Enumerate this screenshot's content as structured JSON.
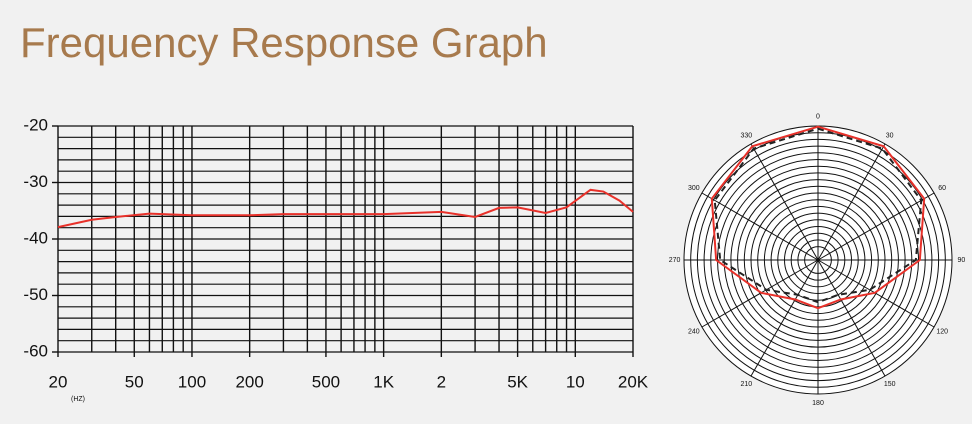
{
  "chart_data": [
    {
      "type": "line",
      "title": "Frequency Response Graph",
      "x_unit": "(HZ)",
      "log_x": true,
      "xlim": [
        20,
        20000
      ],
      "xticks": [
        20,
        50,
        100,
        200,
        500,
        {
          "value": 1000,
          "label": "1K"
        },
        {
          "value": 2000,
          "label": "2"
        },
        {
          "value": 5000,
          "label": "5K"
        },
        {
          "value": 10000,
          "label": "10"
        },
        {
          "value": 20000,
          "label": "20K"
        }
      ],
      "x_grid": [
        20,
        30,
        40,
        50,
        60,
        70,
        80,
        90,
        100,
        200,
        300,
        400,
        500,
        600,
        700,
        800,
        900,
        1000,
        2000,
        3000,
        4000,
        5000,
        6000,
        7000,
        8000,
        9000,
        10000,
        20000
      ],
      "ylim": [
        -60,
        -20
      ],
      "yticks": [
        -20,
        -30,
        -40,
        -50,
        -60
      ],
      "y_grid": [
        -20,
        -22,
        -24,
        -26,
        -28,
        -30,
        -32,
        -34,
        -36,
        -38,
        -40,
        -42,
        -44,
        -46,
        -48,
        -50,
        -52,
        -54,
        -56,
        -58,
        -60
      ],
      "grid": true,
      "series": [
        {
          "color": "#e8312a",
          "x": [
            20,
            30,
            40,
            60,
            100,
            200,
            300,
            1000,
            2000,
            3000,
            4000,
            5000,
            7000,
            9000,
            12000,
            14000,
            17000,
            20000
          ],
          "values": [
            -37.9,
            -36.6,
            -36.1,
            -35.5,
            -35.8,
            -35.8,
            -35.6,
            -35.6,
            -35.2,
            -36.1,
            -34.5,
            -34.4,
            -35.4,
            -34.4,
            -31.3,
            -31.6,
            -33.2,
            -35.2
          ]
        }
      ]
    },
    {
      "type": "polar",
      "rlim": [
        0,
        20
      ],
      "r_grid": [
        2,
        3,
        4,
        5,
        6,
        7,
        8,
        9,
        10,
        11,
        12,
        13,
        14,
        15,
        16,
        17,
        18,
        19,
        20
      ],
      "theta": [
        0,
        30,
        60,
        90,
        120,
        150,
        180,
        210,
        240,
        270,
        300,
        330
      ],
      "series": [
        {
          "color": "#e8312a",
          "dash": false,
          "values": [
            19.9,
            19.6,
            18.3,
            15.2,
            9.8,
            6.8,
            7.2,
            6.8,
            9.8,
            15.2,
            18.3,
            19.6
          ]
        },
        {
          "color": "#222222",
          "dash": true,
          "values": [
            19.6,
            19.2,
            17.8,
            14.6,
            8.9,
            6.0,
            6.3,
            6.0,
            8.9,
            14.6,
            17.8,
            19.2
          ]
        }
      ]
    }
  ]
}
